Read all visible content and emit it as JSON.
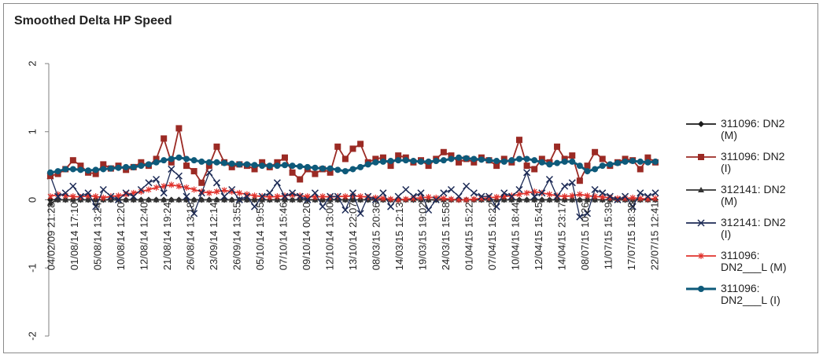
{
  "chart_data": {
    "type": "line",
    "title": "Smoothed Delta HP Speed",
    "xlabel": "",
    "ylabel": "",
    "ylim": [
      -2,
      2
    ],
    "y_ticks": [
      2,
      1,
      0,
      -1,
      -2
    ],
    "grid": false,
    "legend_position": "right",
    "x_tick_labels": [
      "04/02/09 21:28",
      "01/08/14 17:10",
      "05/08/14 13:24",
      "10/08/14 12:20",
      "12/08/14 12:40",
      "21/08/14 19:24",
      "26/08/14 13:18",
      "23/09/14 12:14",
      "26/09/14 13:55",
      "05/10/14 19:55",
      "07/10/14 15:46",
      "09/10/14 00:20",
      "12/10/14 13:00",
      "13/10/14 22:07",
      "08/03/15 20:36",
      "14/03/15 12:13",
      "19/03/15 19:02",
      "24/03/15 15:58",
      "01/04/15 15:22",
      "07/04/15 16:22",
      "10/04/15 18:44",
      "12/04/15 15:45",
      "14/04/15 23:17",
      "08/07/15 10:26",
      "11/07/15 15:39",
      "17/07/15 18:38",
      "22/07/15 12:41"
    ],
    "series": [
      {
        "name": "311096: DN2 (M)",
        "color": "#1a1a1a",
        "marker": "diamond",
        "values": [
          0,
          0,
          0,
          0,
          0,
          0,
          0,
          0,
          0,
          0,
          0,
          0,
          0,
          0,
          0,
          0,
          0,
          0,
          0,
          0,
          0,
          0,
          0,
          0,
          0,
          0,
          0,
          0,
          0,
          0,
          0,
          0,
          0,
          0,
          0,
          0,
          0,
          0,
          0,
          0,
          0,
          0,
          0,
          0,
          0,
          0,
          0,
          0,
          0,
          0,
          0,
          0,
          0,
          0,
          0,
          0,
          0,
          0,
          0,
          0,
          0,
          0,
          0,
          0,
          0,
          0,
          0,
          0,
          0,
          0,
          0,
          0,
          0,
          0,
          0,
          0,
          0,
          0,
          0,
          0,
          0
        ]
      },
      {
        "name": "311096: DN2 (I)",
        "color": "#9b2a24",
        "marker": "square",
        "values": [
          0.35,
          0.38,
          0.45,
          0.58,
          0.5,
          0.4,
          0.38,
          0.52,
          0.46,
          0.5,
          0.44,
          0.48,
          0.55,
          0.5,
          0.6,
          0.9,
          0.55,
          1.05,
          0.5,
          0.42,
          0.25,
          0.5,
          0.78,
          0.55,
          0.48,
          0.52,
          0.5,
          0.45,
          0.55,
          0.48,
          0.55,
          0.62,
          0.4,
          0.3,
          0.45,
          0.38,
          0.45,
          0.4,
          0.78,
          0.6,
          0.75,
          0.82,
          0.55,
          0.6,
          0.62,
          0.5,
          0.65,
          0.62,
          0.55,
          0.58,
          0.5,
          0.6,
          0.7,
          0.65,
          0.55,
          0.6,
          0.55,
          0.62,
          0.58,
          0.5,
          0.6,
          0.55,
          0.88,
          0.5,
          0.45,
          0.6,
          0.55,
          0.78,
          0.6,
          0.65,
          0.28,
          0.5,
          0.7,
          0.6,
          0.5,
          0.55,
          0.6,
          0.58,
          0.45,
          0.62,
          0.55
        ]
      },
      {
        "name": "312141: DN2 (M)",
        "color": "#333333",
        "marker": "triangle",
        "values": [
          -0.05,
          0,
          0,
          0,
          0,
          0,
          0,
          0,
          0,
          0,
          0,
          0,
          0,
          0,
          0,
          0,
          0,
          0,
          0,
          0,
          0,
          0,
          0,
          0,
          0,
          0,
          0,
          0,
          0,
          0,
          0,
          0,
          0,
          0,
          0,
          0,
          0,
          0,
          0,
          0,
          0,
          0,
          0,
          0,
          0,
          0,
          0,
          0,
          0,
          0,
          0,
          0,
          0,
          0,
          0,
          0,
          0,
          0,
          0,
          0,
          0,
          0,
          0,
          0,
          0,
          0,
          0,
          0,
          0,
          0,
          0,
          0,
          0,
          0,
          0,
          0,
          0,
          0,
          0,
          0,
          0
        ]
      },
      {
        "name": "312141: DN2 (I)",
        "color": "#1c2a55",
        "marker": "x",
        "values": [
          0.35,
          0.05,
          0.1,
          0.2,
          0.05,
          0.1,
          -0.1,
          0.15,
          0.05,
          0.0,
          0.1,
          0.05,
          0.15,
          0.25,
          0.3,
          0.1,
          0.45,
          0.35,
          0.05,
          -0.2,
          0.1,
          0.4,
          0.25,
          0.05,
          0.15,
          0.0,
          0.05,
          -0.1,
          0.05,
          0.1,
          0.25,
          0.05,
          0.1,
          0.05,
          0.0,
          0.1,
          -0.1,
          0.05,
          0.05,
          -0.15,
          0.1,
          -0.2,
          0.05,
          0.0,
          0.1,
          -0.1,
          0.05,
          0.15,
          0.05,
          0.1,
          -0.15,
          0.0,
          0.1,
          0.15,
          0.05,
          0.2,
          0.1,
          0.05,
          0.05,
          -0.1,
          0.1,
          0.05,
          0.15,
          0.4,
          0.05,
          0.1,
          0.3,
          0.05,
          0.2,
          0.25,
          -0.25,
          -0.2,
          0.15,
          0.1,
          0.05,
          0.0,
          0.05,
          -0.1,
          0.1,
          0.05,
          0.1
        ]
      },
      {
        "name": "311096: DN2___L (M)",
        "color": "#e0322c",
        "marker": "star",
        "values": [
          0.05,
          0.08,
          0.06,
          0.05,
          0.04,
          0.06,
          0.05,
          0.03,
          0.05,
          0.06,
          0.08,
          0.1,
          0.12,
          0.15,
          0.18,
          0.2,
          0.22,
          0.2,
          0.18,
          0.15,
          0.12,
          0.1,
          0.12,
          0.14,
          0.12,
          0.1,
          0.08,
          0.06,
          0.05,
          0.04,
          0.05,
          0.06,
          0.07,
          0.06,
          0.05,
          0.04,
          0.05,
          0.04,
          0.05,
          0.05,
          0.06,
          0.05,
          0.04,
          0.03,
          0.02,
          0.01,
          0.0,
          0.01,
          0.02,
          0.03,
          0.04,
          0.03,
          0.02,
          0.01,
          0.0,
          0.0,
          0.01,
          0.02,
          0.03,
          0.04,
          0.05,
          0.06,
          0.08,
          0.1,
          0.12,
          0.1,
          0.08,
          0.06,
          0.05,
          0.06,
          0.08,
          0.06,
          0.05,
          0.04,
          0.03,
          0.02,
          0.02,
          0.03,
          0.02,
          0.01,
          0.02
        ]
      },
      {
        "name": "311096: DN2___L (I)",
        "color": "#0e5a7a",
        "marker": "circle",
        "values": [
          0.4,
          0.42,
          0.45,
          0.45,
          0.44,
          0.43,
          0.44,
          0.45,
          0.46,
          0.47,
          0.48,
          0.48,
          0.5,
          0.52,
          0.55,
          0.58,
          0.6,
          0.62,
          0.6,
          0.58,
          0.56,
          0.55,
          0.55,
          0.54,
          0.53,
          0.52,
          0.52,
          0.51,
          0.5,
          0.5,
          0.5,
          0.51,
          0.5,
          0.49,
          0.48,
          0.47,
          0.46,
          0.46,
          0.44,
          0.42,
          0.45,
          0.48,
          0.52,
          0.55,
          0.56,
          0.57,
          0.58,
          0.58,
          0.57,
          0.56,
          0.56,
          0.57,
          0.58,
          0.6,
          0.62,
          0.61,
          0.6,
          0.59,
          0.58,
          0.57,
          0.56,
          0.58,
          0.6,
          0.6,
          0.58,
          0.55,
          0.52,
          0.54,
          0.56,
          0.56,
          0.5,
          0.42,
          0.45,
          0.5,
          0.52,
          0.54,
          0.56,
          0.57,
          0.56,
          0.55,
          0.56
        ]
      }
    ]
  }
}
